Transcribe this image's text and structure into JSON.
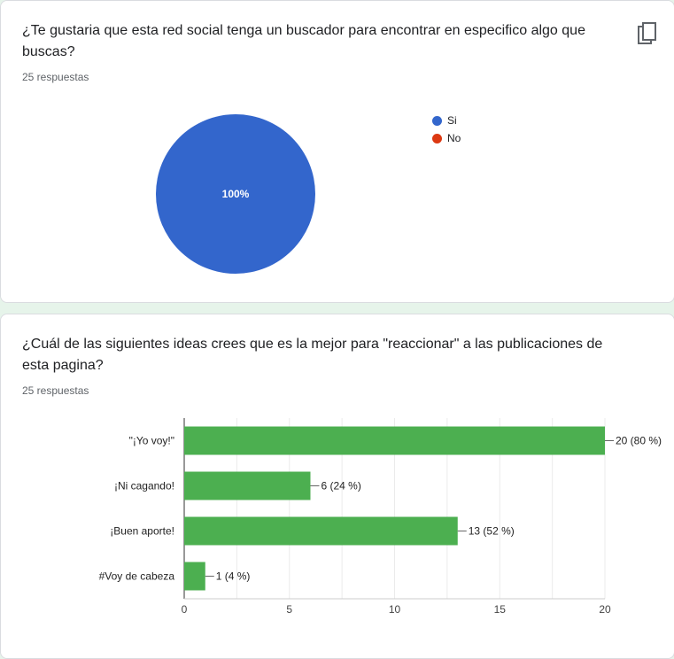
{
  "questions": [
    {
      "title": "¿Te gustaria que esta red social tenga un buscador para encontrar en especifico algo que buscas?",
      "responses": "25 respuestas"
    },
    {
      "title": "¿Cuál de las siguientes ideas crees que es la mejor para \"reaccionar\" a las publicaciones de esta pagina?",
      "responses": "25 respuestas"
    }
  ],
  "icons": {
    "copy": "copy-icon"
  },
  "colors": {
    "si": "#3366cc",
    "no": "#dc3912",
    "bar": "#4caf50"
  },
  "chart_data": [
    {
      "type": "pie",
      "categories": [
        "Si",
        "No"
      ],
      "values": [
        100,
        0
      ],
      "slice_labels": [
        "100%",
        ""
      ],
      "legend_position": "right"
    },
    {
      "type": "bar",
      "orientation": "horizontal",
      "categories": [
        "\"¡Yo voy!\"",
        "¡Ni cagando!",
        "¡Buen aporte!",
        "#Voy de cabeza"
      ],
      "values": [
        20,
        6,
        13,
        1
      ],
      "data_labels": [
        "20 (80 %)",
        "6 (24 %)",
        "13 (52 %)",
        "1 (4 %)"
      ],
      "xlim": [
        0,
        20
      ],
      "xticks": [
        0,
        5,
        10,
        15,
        20
      ],
      "grid": true
    }
  ]
}
